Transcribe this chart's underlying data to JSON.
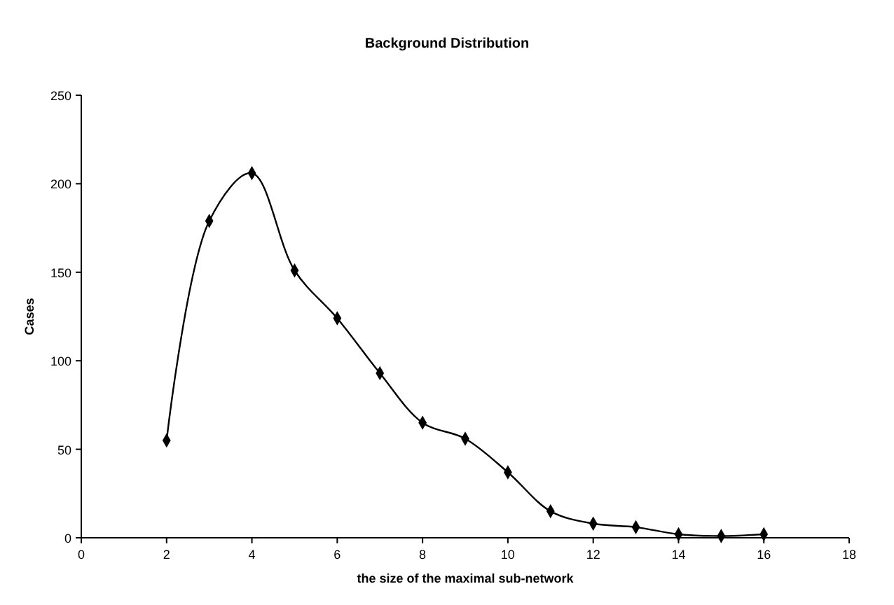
{
  "chart_data": {
    "type": "line",
    "title": "Background Distribution",
    "xlabel": "the size of the maximal sub-network",
    "ylabel": "Cases",
    "x": [
      2,
      3,
      4,
      5,
      6,
      7,
      8,
      9,
      10,
      11,
      12,
      13,
      14,
      15,
      16
    ],
    "series": [
      {
        "color": "#000000",
        "values": [
          55,
          179,
          206,
          151,
          124,
          93,
          65,
          56,
          37,
          15,
          8,
          6,
          2,
          1,
          2
        ]
      }
    ],
    "xlim": [
      0,
      18
    ],
    "xticks": [
      0,
      2,
      4,
      6,
      8,
      10,
      12,
      14,
      16,
      18
    ],
    "ylim": [
      0,
      250
    ],
    "yticks": [
      0,
      50,
      100,
      150,
      200,
      250
    ],
    "marker": "diamond",
    "line_style": "solid",
    "grid": false,
    "legend": false
  }
}
